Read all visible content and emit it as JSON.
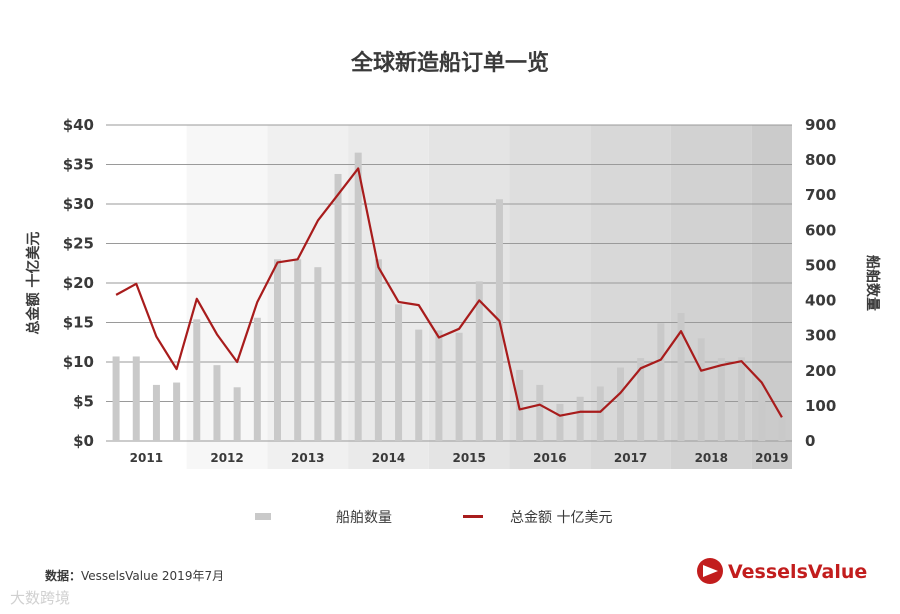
{
  "chart_data": {
    "type": "bar+line",
    "title": "全球新造船订单一览",
    "y_left_label": "总金额 十亿美元",
    "y_right_label": "船舶数量",
    "y_left_ticks": [
      "$0",
      "$5",
      "$10",
      "$15",
      "$20",
      "$25",
      "$30",
      "$35",
      "$40"
    ],
    "y_right_ticks": [
      "0",
      "100",
      "200",
      "300",
      "400",
      "500",
      "600",
      "700",
      "800",
      "900"
    ],
    "ylim_left": [
      0,
      40
    ],
    "ylim_right": [
      0,
      900
    ],
    "x_labels": [
      "2011",
      "2012",
      "2013",
      "2014",
      "2015",
      "2016",
      "2017",
      "2018",
      "2019"
    ],
    "series": [
      {
        "name": "船舶数量",
        "type": "bar",
        "axis": "right",
        "color": "#c9c9c9",
        "values": [
          10.7,
          10.7,
          7.1,
          7.4,
          15.4,
          9.6,
          6.8,
          15.6,
          23,
          23,
          22,
          33.8,
          36.5,
          23,
          17.3,
          14.1,
          14,
          13.7,
          20.2,
          30.6,
          9,
          7.1,
          4.7,
          5.6,
          6.9,
          9.3,
          10.5,
          14.9,
          16.2,
          13,
          10.5,
          10.6,
          7.5,
          3.9
        ]
      },
      {
        "name": "总金额 十亿美元",
        "type": "line",
        "axis": "left",
        "color": "#a81c1c",
        "values": [
          18.5,
          19.9,
          13.2,
          9.1,
          18,
          13.5,
          10,
          17.6,
          22.6,
          23,
          27.9,
          31.2,
          34.5,
          22,
          17.6,
          17.2,
          13.1,
          14.2,
          17.8,
          15.2,
          4,
          4.6,
          3.2,
          3.7,
          3.7,
          6.1,
          9.2,
          10.3,
          13.9,
          8.9,
          9.6,
          10.1,
          7.4,
          3
        ]
      }
    ],
    "legend": [
      "船舶数量",
      "总金额 十亿美元"
    ],
    "legend_position": "bottom",
    "grid": true
  },
  "footer": {
    "source_label": "数据：",
    "source_text": "VesselsValue 2019年7月",
    "brand": "VesselsValue",
    "watermark": "大数跨境"
  },
  "colors": {
    "bar": "#c9c9c9",
    "line": "#a81c1c",
    "brand": "#c21d1d",
    "band_base": "#f6f6f6"
  }
}
